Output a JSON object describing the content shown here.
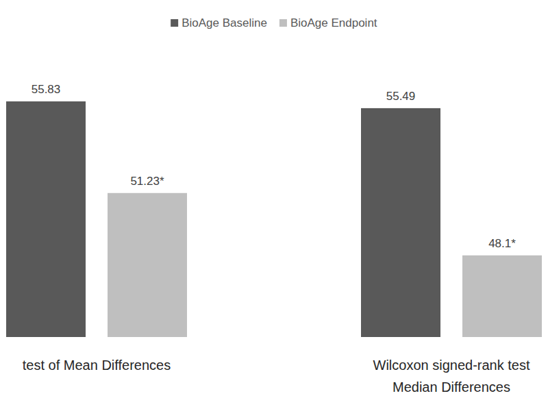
{
  "chart_data": {
    "type": "bar",
    "categories": [
      "test of Mean Differences",
      "Wilcoxon signed-rank test\nMedian Differences"
    ],
    "series": [
      {
        "name": "BioAge Baseline",
        "color": "#595959",
        "values": [
          55.83,
          55.49
        ],
        "value_labels": [
          "55.83",
          "55.49"
        ]
      },
      {
        "name": "BioAge Endpoint",
        "color": "#bfbfbf",
        "values": [
          51.23,
          48.1
        ],
        "value_labels": [
          "51.23*",
          "48.1*"
        ]
      }
    ],
    "ylim": [
      44,
      57
    ],
    "data_labels": true,
    "tick_labels": false,
    "legend": "top",
    "grid": false
  }
}
